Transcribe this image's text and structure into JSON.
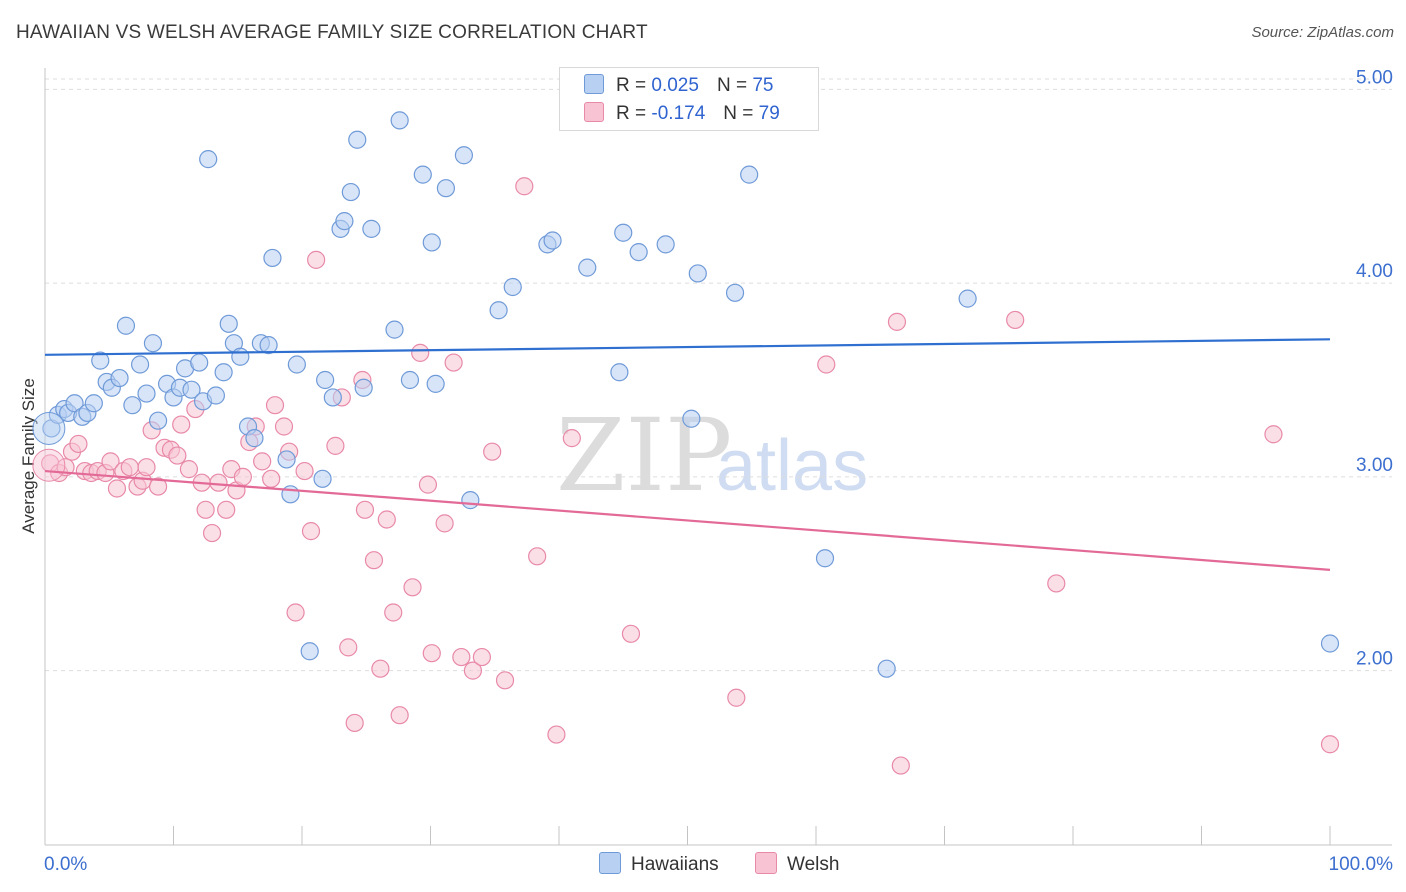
{
  "title": "HAWAIIAN VS WELSH AVERAGE FAMILY SIZE CORRELATION CHART",
  "source": "Source: ZipAtlas.com",
  "legend": {
    "rows": [
      {
        "r_label": "R =",
        "r_value": "0.025",
        "n_label": "N =",
        "n_value": "75"
      },
      {
        "r_label": "R =",
        "r_value": "-0.174",
        "n_label": "N =",
        "n_value": "79"
      }
    ]
  },
  "watermark": {
    "zip": "ZIP",
    "atlas": "atlas"
  },
  "colors": {
    "hawaiians_fill": "#b8d0f2",
    "hawaiians_stroke": "#6f9ad8",
    "hawaiians_line": "#2f6fd0",
    "welsh_fill": "#f8c4d4",
    "welsh_stroke": "#e889a8",
    "welsh_line": "#e36a96",
    "grid": "#dddddd",
    "tick_label": "#3c6fcf"
  },
  "chart_data": {
    "type": "scatter",
    "title": "HAWAIIAN VS WELSH AVERAGE FAMILY SIZE CORRELATION CHART",
    "xlabel": "",
    "ylabel": "Average Family Size",
    "xlim": [
      0,
      100
    ],
    "ylim": [
      1.1,
      5.1
    ],
    "x_tick_labels": [
      "0.0%",
      "100.0%"
    ],
    "y_ticks": [
      2.0,
      3.0,
      4.0,
      5.0
    ],
    "y_tick_labels": [
      "2.00",
      "3.00",
      "4.00",
      "5.00"
    ],
    "grid": true,
    "legend_position": "top-center",
    "series": [
      {
        "name": "Hawaiians",
        "trend": {
          "x": [
            0,
            100
          ],
          "y": [
            3.63,
            3.71
          ]
        },
        "points": [
          [
            0.5,
            3.25
          ],
          [
            1.0,
            3.32
          ],
          [
            1.5,
            3.35
          ],
          [
            1.8,
            3.33
          ],
          [
            2.3,
            3.38
          ],
          [
            2.9,
            3.31
          ],
          [
            3.3,
            3.33
          ],
          [
            3.8,
            3.38
          ],
          [
            4.3,
            3.6
          ],
          [
            4.8,
            3.49
          ],
          [
            5.2,
            3.46
          ],
          [
            5.8,
            3.51
          ],
          [
            6.3,
            3.78
          ],
          [
            6.8,
            3.37
          ],
          [
            7.4,
            3.58
          ],
          [
            7.9,
            3.43
          ],
          [
            8.4,
            3.69
          ],
          [
            8.8,
            3.29
          ],
          [
            9.5,
            3.48
          ],
          [
            10.0,
            3.41
          ],
          [
            10.5,
            3.46
          ],
          [
            10.9,
            3.56
          ],
          [
            11.4,
            3.45
          ],
          [
            12.0,
            3.59
          ],
          [
            12.3,
            3.39
          ],
          [
            12.7,
            4.64
          ],
          [
            13.3,
            3.42
          ],
          [
            13.9,
            3.54
          ],
          [
            14.3,
            3.79
          ],
          [
            14.7,
            3.69
          ],
          [
            15.2,
            3.62
          ],
          [
            15.8,
            3.26
          ],
          [
            16.3,
            3.2
          ],
          [
            16.8,
            3.69
          ],
          [
            17.4,
            3.68
          ],
          [
            17.7,
            4.13
          ],
          [
            18.8,
            3.09
          ],
          [
            19.1,
            2.91
          ],
          [
            19.6,
            3.58
          ],
          [
            20.6,
            2.1
          ],
          [
            21.6,
            2.99
          ],
          [
            21.8,
            3.5
          ],
          [
            22.4,
            3.41
          ],
          [
            23.0,
            4.28
          ],
          [
            23.3,
            4.32
          ],
          [
            23.8,
            4.47
          ],
          [
            24.3,
            4.74
          ],
          [
            24.8,
            3.46
          ],
          [
            25.4,
            4.28
          ],
          [
            27.2,
            3.76
          ],
          [
            27.6,
            4.84
          ],
          [
            28.4,
            3.5
          ],
          [
            29.4,
            4.56
          ],
          [
            30.1,
            4.21
          ],
          [
            30.4,
            3.48
          ],
          [
            31.2,
            4.49
          ],
          [
            32.6,
            4.66
          ],
          [
            33.1,
            2.88
          ],
          [
            35.3,
            3.86
          ],
          [
            36.4,
            3.98
          ],
          [
            39.1,
            4.2
          ],
          [
            39.5,
            4.22
          ],
          [
            42.2,
            4.08
          ],
          [
            44.7,
            3.54
          ],
          [
            45.0,
            4.26
          ],
          [
            46.2,
            4.16
          ],
          [
            48.3,
            4.2
          ],
          [
            50.3,
            3.3
          ],
          [
            50.8,
            4.05
          ],
          [
            53.7,
            3.95
          ],
          [
            54.8,
            4.56
          ],
          [
            60.7,
            2.58
          ],
          [
            65.5,
            2.01
          ],
          [
            71.8,
            3.92
          ],
          [
            100.0,
            2.14
          ]
        ]
      },
      {
        "name": "Welsh",
        "trend": {
          "x": [
            0,
            100
          ],
          "y": [
            3.03,
            2.52
          ]
        },
        "points": [
          [
            0.4,
            3.07
          ],
          [
            1.1,
            3.02
          ],
          [
            1.6,
            3.05
          ],
          [
            2.1,
            3.13
          ],
          [
            2.6,
            3.17
          ],
          [
            3.1,
            3.03
          ],
          [
            3.6,
            3.02
          ],
          [
            4.1,
            3.03
          ],
          [
            4.7,
            3.02
          ],
          [
            5.1,
            3.08
          ],
          [
            5.6,
            2.94
          ],
          [
            6.1,
            3.03
          ],
          [
            6.6,
            3.05
          ],
          [
            7.2,
            2.95
          ],
          [
            7.6,
            2.98
          ],
          [
            7.9,
            3.05
          ],
          [
            8.3,
            3.24
          ],
          [
            8.8,
            2.95
          ],
          [
            9.3,
            3.15
          ],
          [
            9.8,
            3.14
          ],
          [
            10.3,
            3.11
          ],
          [
            10.6,
            3.27
          ],
          [
            11.2,
            3.04
          ],
          [
            11.7,
            3.35
          ],
          [
            12.2,
            2.97
          ],
          [
            12.5,
            2.83
          ],
          [
            13.0,
            2.71
          ],
          [
            13.5,
            2.97
          ],
          [
            14.1,
            2.83
          ],
          [
            14.5,
            3.04
          ],
          [
            14.9,
            2.93
          ],
          [
            15.4,
            3.0
          ],
          [
            15.9,
            3.18
          ],
          [
            16.4,
            3.26
          ],
          [
            16.9,
            3.08
          ],
          [
            17.6,
            2.99
          ],
          [
            17.9,
            3.37
          ],
          [
            18.6,
            3.26
          ],
          [
            19.0,
            3.13
          ],
          [
            19.5,
            2.3
          ],
          [
            20.2,
            3.03
          ],
          [
            20.7,
            2.72
          ],
          [
            21.1,
            4.12
          ],
          [
            22.6,
            3.16
          ],
          [
            23.1,
            3.41
          ],
          [
            23.6,
            2.12
          ],
          [
            24.1,
            1.73
          ],
          [
            24.7,
            3.5
          ],
          [
            24.9,
            2.83
          ],
          [
            25.6,
            2.57
          ],
          [
            26.1,
            2.01
          ],
          [
            26.6,
            2.78
          ],
          [
            27.1,
            2.3
          ],
          [
            27.6,
            1.77
          ],
          [
            28.6,
            2.43
          ],
          [
            29.2,
            3.64
          ],
          [
            29.8,
            2.96
          ],
          [
            30.1,
            2.09
          ],
          [
            31.1,
            2.76
          ],
          [
            31.8,
            3.59
          ],
          [
            32.4,
            2.07
          ],
          [
            33.3,
            2.0
          ],
          [
            34.0,
            2.07
          ],
          [
            34.8,
            3.13
          ],
          [
            35.8,
            1.95
          ],
          [
            37.3,
            4.5
          ],
          [
            38.3,
            2.59
          ],
          [
            39.8,
            1.67
          ],
          [
            41.0,
            3.2
          ],
          [
            45.6,
            2.19
          ],
          [
            47.0,
            5.0
          ],
          [
            53.8,
            1.86
          ],
          [
            60.8,
            3.58
          ],
          [
            66.3,
            3.8
          ],
          [
            66.6,
            1.51
          ],
          [
            75.5,
            3.81
          ],
          [
            78.7,
            2.45
          ],
          [
            95.6,
            3.22
          ],
          [
            100.0,
            1.62
          ]
        ]
      }
    ]
  },
  "bottom_legend": {
    "hawaiians": "Hawaiians",
    "welsh": "Welsh"
  }
}
